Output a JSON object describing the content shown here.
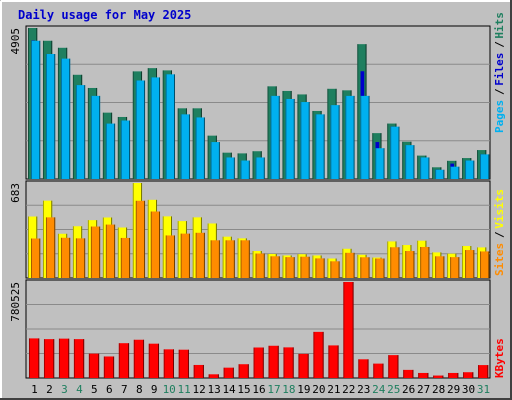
{
  "title": "Daily usage for May 2025",
  "colors": {
    "hits": "#1f7f5f",
    "files": "#0000cc",
    "pages": "#00b0f0",
    "visits": "#ffff00",
    "sites": "#ff8c00",
    "kbytes": "#ff0000",
    "panel_bg": "#c0c0c0",
    "frame_bg": "#c0c0c0",
    "title_color": "#0000cc",
    "weekend_day_color": "#1f7f5f",
    "weekday_day_color": "#000000"
  },
  "chart_data": [
    {
      "type": "bar",
      "panel": "top",
      "y_max_label": "4905",
      "ylim": [
        0,
        4905
      ],
      "categories": [
        "1",
        "2",
        "3",
        "4",
        "5",
        "6",
        "7",
        "8",
        "9",
        "10",
        "11",
        "12",
        "13",
        "14",
        "15",
        "16",
        "17",
        "18",
        "19",
        "20",
        "21",
        "22",
        "23",
        "24",
        "25",
        "26",
        "27",
        "28",
        "29",
        "30",
        "31"
      ],
      "weekend_days": [
        "3",
        "4",
        "10",
        "11",
        "17",
        "18",
        "24",
        "25",
        "31"
      ],
      "legend_right": [
        "Pages",
        "/",
        "Files",
        "/",
        "Hits"
      ],
      "series": [
        {
          "name": "Hits",
          "values": [
            4905,
            4490,
            4262,
            3385,
            2957,
            2155,
            2015,
            3496,
            3601,
            3528,
            2296,
            2296,
            1408,
            855,
            832,
            902,
            3010,
            2860,
            2747,
            2210,
            2930,
            2880,
            4380,
            1490,
            1801,
            1210,
            760,
            380,
            590,
            680,
            940
          ]
        },
        {
          "name": "Files",
          "values": [
            4500,
            3500,
            3390,
            2900,
            2500,
            1700,
            1600,
            3200,
            3200,
            2200,
            1900,
            1900,
            1000,
            500,
            500,
            600,
            2600,
            2500,
            2000,
            2000,
            2200,
            2200,
            3500,
            1200,
            1700,
            1000,
            600,
            300,
            500,
            600,
            800
          ]
        },
        {
          "name": "Pages",
          "values": [
            4490,
            4060,
            3910,
            3050,
            2700,
            1800,
            1900,
            3200,
            3300,
            3400,
            2100,
            2000,
            1200,
            700,
            600,
            700,
            2700,
            2600,
            2500,
            2100,
            2400,
            2700,
            2700,
            1000,
            1700,
            1100,
            700,
            300,
            400,
            600,
            800
          ]
        }
      ]
    },
    {
      "type": "bar",
      "panel": "middle",
      "y_max_label": "683",
      "ylim": [
        0,
        683
      ],
      "legend_right": [
        "Sites",
        "/",
        "Visits"
      ],
      "series": [
        {
          "name": "Visits",
          "values": [
            442,
            556,
            318,
            372,
            416,
            435,
            363,
            683,
            562,
            443,
            409,
            436,
            392,
            297,
            285,
            194,
            173,
            162,
            171,
            162,
            140,
            210,
            167,
            147,
            263,
            237,
            268,
            184,
            175,
            230,
            220
          ]
        },
        {
          "name": "Sites",
          "values": [
            284,
            436,
            289,
            285,
            370,
            384,
            288,
            555,
            478,
            306,
            319,
            325,
            271,
            271,
            271,
            176,
            156,
            150,
            153,
            141,
            120,
            181,
            149,
            140,
            221,
            194,
            223,
            156,
            150,
            201,
            191
          ]
        }
      ]
    },
    {
      "type": "bar",
      "panel": "bottom",
      "y_max_label": "780525",
      "ylim": [
        0,
        780525
      ],
      "legend_right": [
        "KBytes"
      ],
      "series": [
        {
          "name": "KBytes",
          "values": [
            322000,
            316000,
            320000,
            316000,
            198000,
            175000,
            283000,
            311000,
            279000,
            233000,
            230000,
            106000,
            30000,
            84000,
            112000,
            248000,
            262000,
            249000,
            196000,
            375000,
            265000,
            780525,
            152000,
            117000,
            186000,
            66000,
            41000,
            20000,
            41000,
            47000,
            105000
          ]
        }
      ]
    }
  ]
}
